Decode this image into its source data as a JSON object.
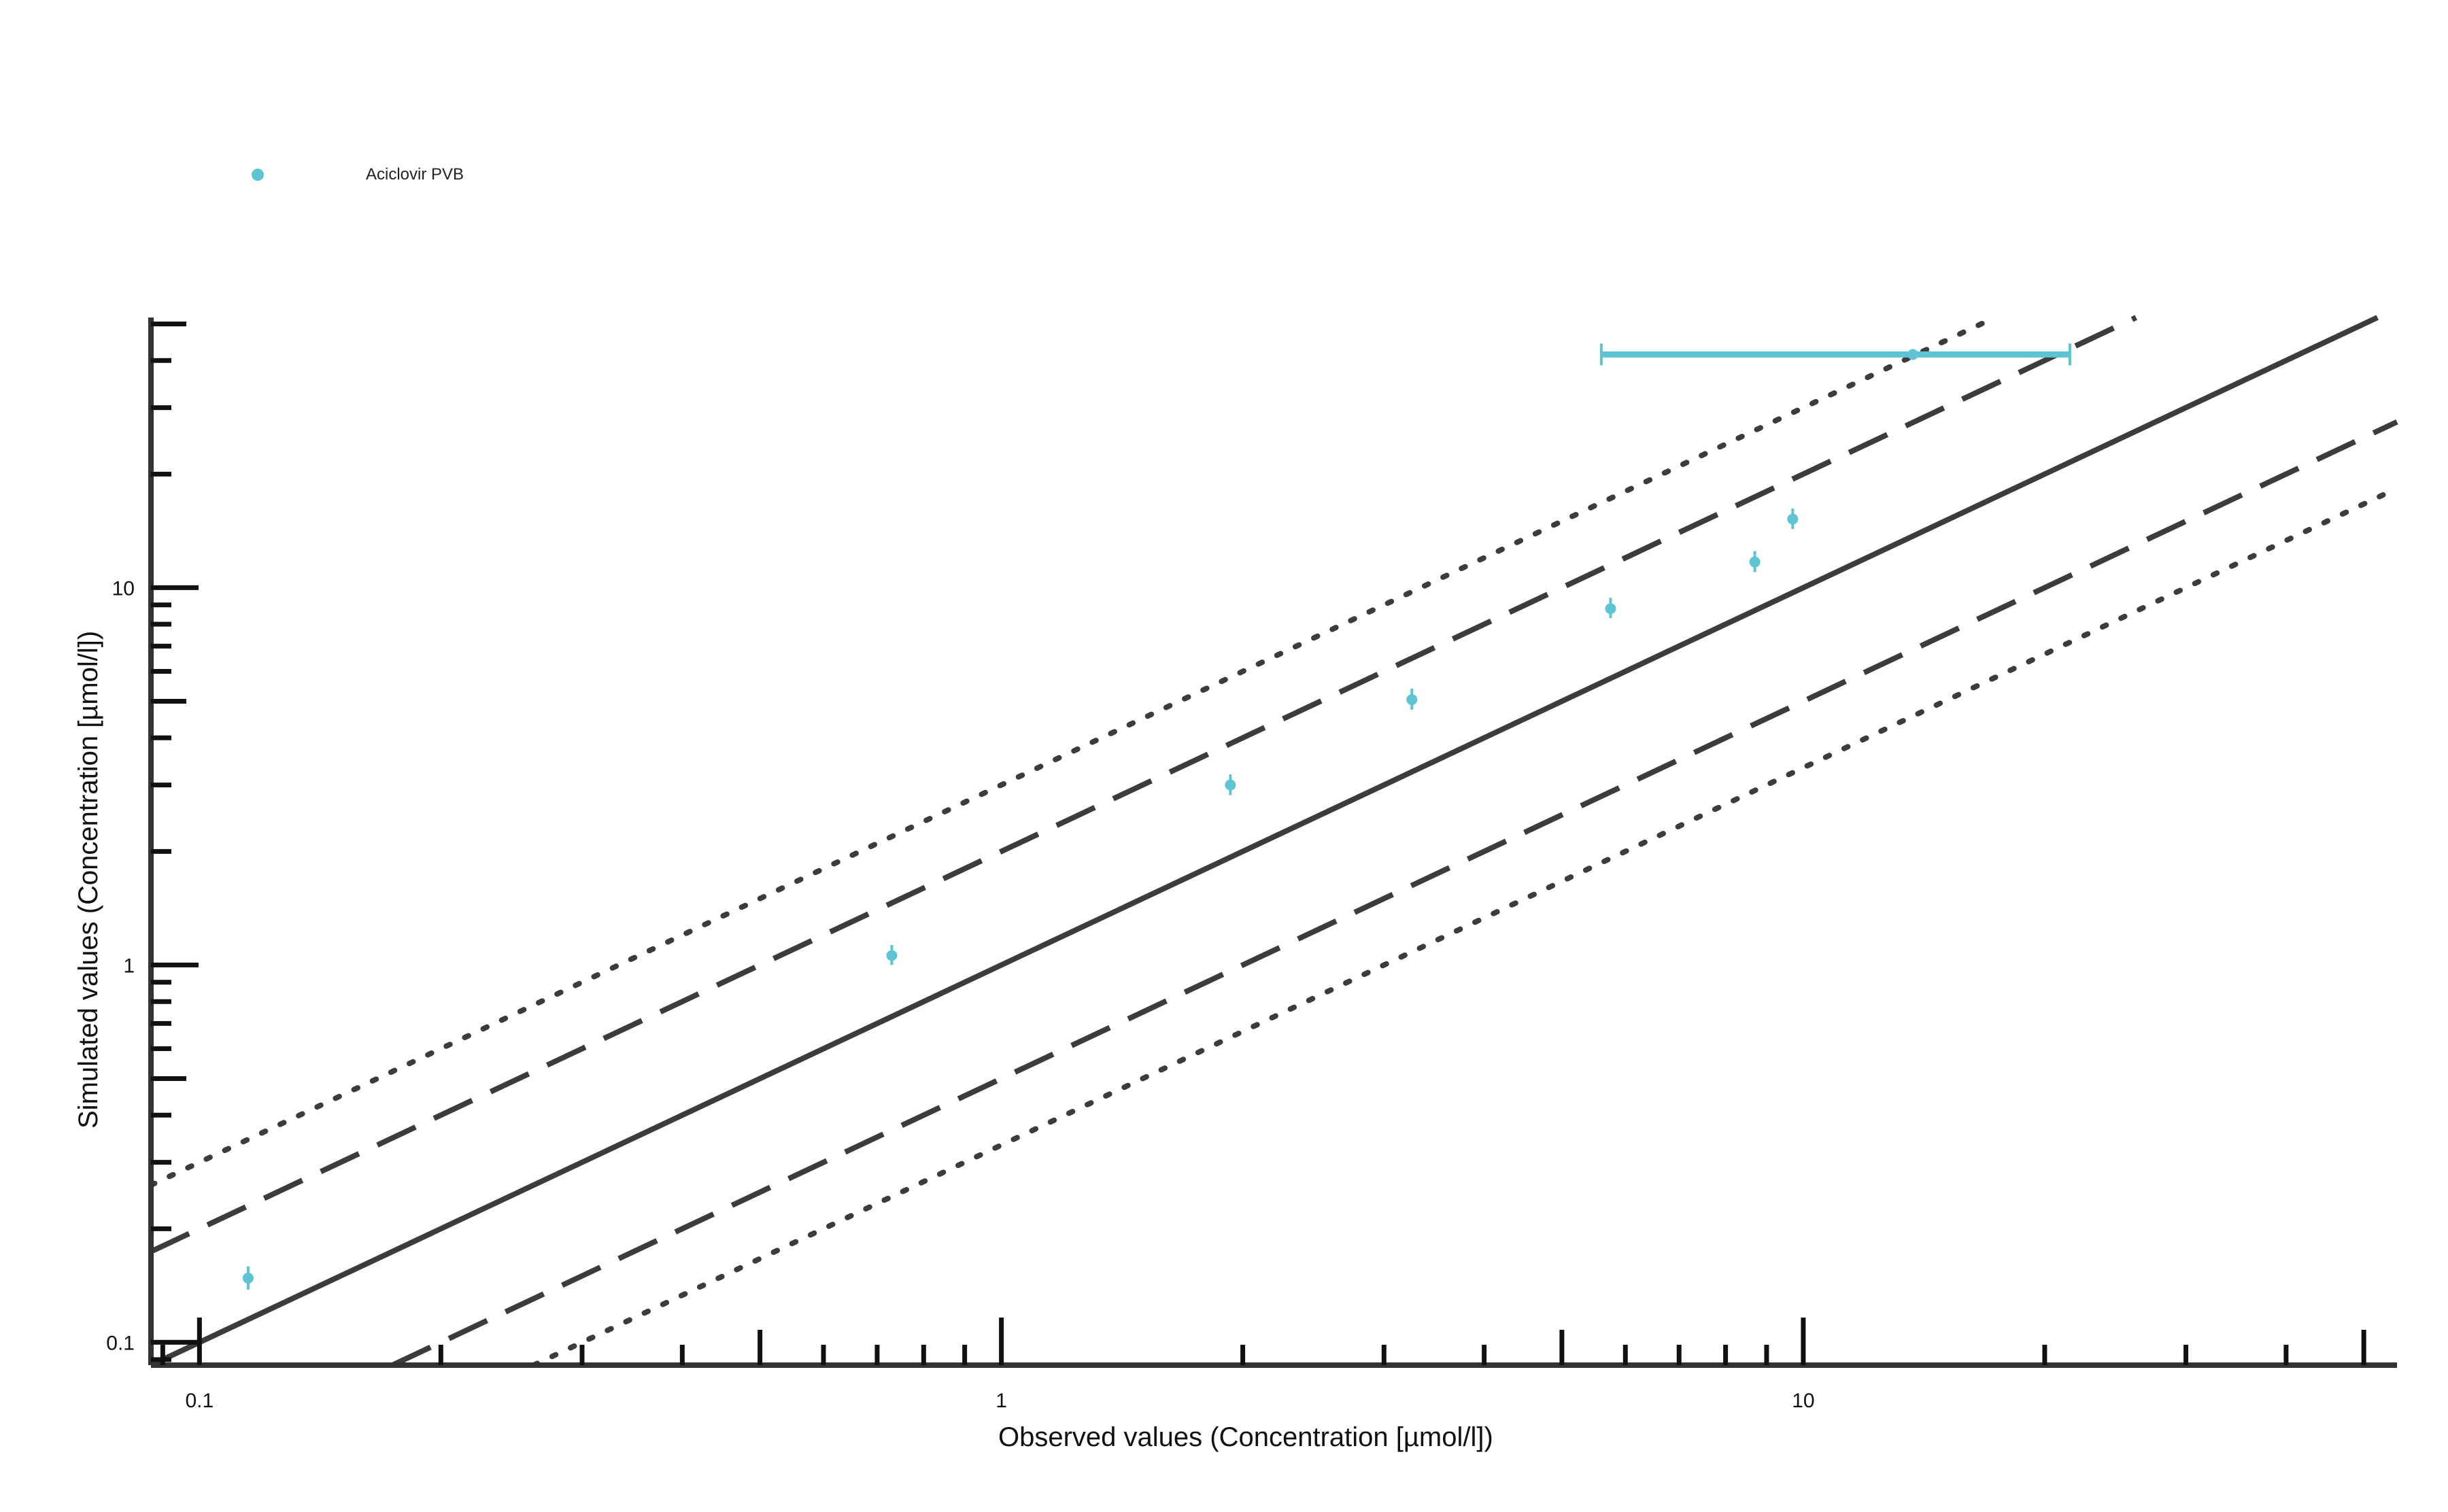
{
  "chart_data": {
    "type": "scatter",
    "title": "",
    "xlabel": "Observed values (Concentration [µmol/l])",
    "ylabel": "Simulated values (Concentration [µmol/l])",
    "xscale": "log",
    "yscale": "log",
    "xlim": [
      0.087,
      55
    ],
    "ylim": [
      0.087,
      52
    ],
    "x_ticks": [
      {
        "value": 0.1,
        "label": "0.1"
      },
      {
        "value": 1,
        "label": "1"
      },
      {
        "value": 10,
        "label": "10"
      }
    ],
    "y_ticks": [
      {
        "value": 0.1,
        "label": "0.1"
      },
      {
        "value": 1,
        "label": "1"
      },
      {
        "value": 10,
        "label": "10"
      }
    ],
    "grid": false,
    "legend_position": "top-left",
    "series": [
      {
        "name": "Aciclovir PVB",
        "color": "#5ec4d3",
        "points": [
          {
            "x": 0.115,
            "y": 0.148,
            "yerr": [
              0.138,
              0.159
            ]
          },
          {
            "x": 0.73,
            "y": 1.06,
            "yerr": [
              1.0,
              1.13
            ]
          },
          {
            "x": 1.93,
            "y": 3.0,
            "yerr": [
              2.82,
              3.2
            ]
          },
          {
            "x": 3.25,
            "y": 5.05,
            "yerr": [
              4.75,
              5.4
            ]
          },
          {
            "x": 5.75,
            "y": 8.8,
            "yerr": [
              8.3,
              9.4
            ]
          },
          {
            "x": 8.7,
            "y": 11.7,
            "yerr": [
              11.0,
              12.5
            ]
          },
          {
            "x": 9.7,
            "y": 15.2,
            "yerr": [
              14.3,
              16.2
            ]
          },
          {
            "x": 13.7,
            "y": 41.5,
            "xerr": [
              5.6,
              21.5
            ]
          }
        ]
      }
    ],
    "reference_lines": [
      {
        "kind": "identity",
        "factor": 1,
        "style": "solid"
      },
      {
        "kind": "fold",
        "factor": 2,
        "style": "dashed"
      },
      {
        "kind": "fold",
        "factor": 0.5,
        "style": "dashed"
      },
      {
        "kind": "fold",
        "factor": 3,
        "style": "dotted"
      },
      {
        "kind": "fold",
        "factor": 0.3333,
        "style": "dotted"
      }
    ],
    "line_color": "#3c3c3c"
  }
}
